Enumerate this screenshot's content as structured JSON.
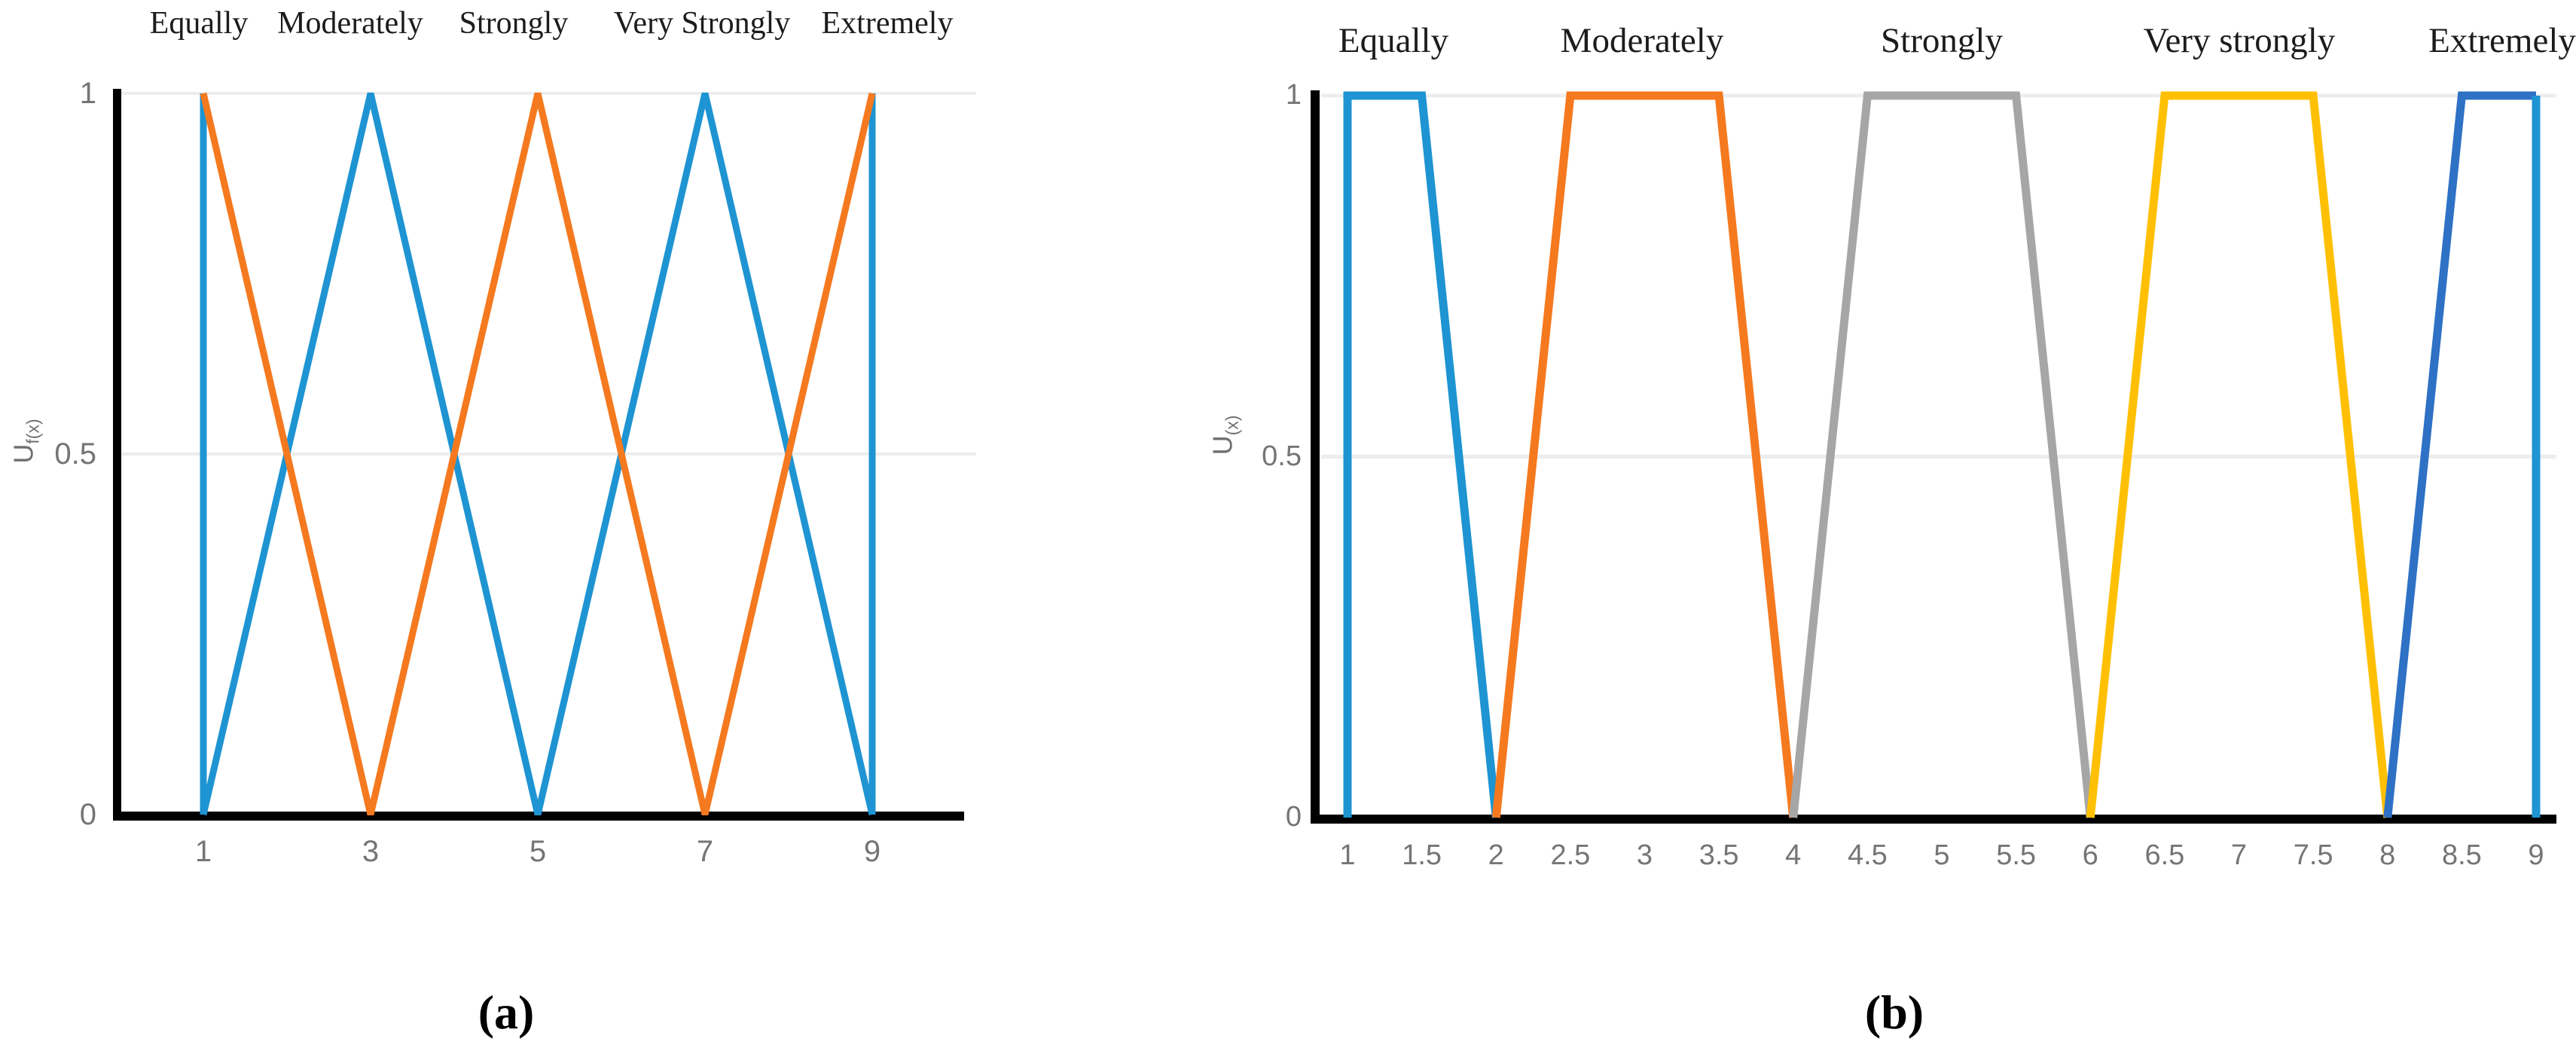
{
  "figure": {
    "captions": {
      "a": "(a)",
      "b": "(b)"
    }
  },
  "chart_data": [
    {
      "type": "line",
      "panel": "a",
      "description": "Triangular fuzzy membership functions over Saaty scale 1-9",
      "membership_labels": [
        "Equally",
        "Moderately",
        "Strongly",
        "Very Strongly",
        "Extremely"
      ],
      "xlabel": "",
      "ylabel_main": "U",
      "ylabel_sub": "f(x)",
      "xlim": [
        1,
        9
      ],
      "ylim": [
        0,
        1
      ],
      "x_ticks": [
        1,
        3,
        5,
        7,
        9
      ],
      "y_ticks": [
        1,
        0.5,
        0
      ],
      "y_gridlines": [
        1,
        0.5
      ],
      "grid": "horizontal-only",
      "legend": "none",
      "axis_color": "#000000",
      "grid_color": "#ededed",
      "series": [
        {
          "name": "blue-left-edge",
          "color": "#1e94d2",
          "points": [
            [
              1,
              0
            ],
            [
              1,
              1
            ]
          ]
        },
        {
          "name": "blue-triangles-zigzag",
          "color": "#1e94d2",
          "points": [
            [
              1,
              0
            ],
            [
              3,
              1
            ],
            [
              5,
              0
            ],
            [
              7,
              1
            ],
            [
              9,
              0
            ]
          ]
        },
        {
          "name": "blue-right-edge",
          "color": "#1e94d2",
          "points": [
            [
              9,
              0
            ],
            [
              9,
              1
            ]
          ]
        },
        {
          "name": "orange-triangles-zigzag",
          "color": "#f5791f",
          "points": [
            [
              1,
              1
            ],
            [
              3,
              0
            ],
            [
              5,
              1
            ],
            [
              7,
              0
            ],
            [
              9,
              1
            ]
          ]
        }
      ]
    },
    {
      "type": "line",
      "panel": "b",
      "description": "Trapezoidal fuzzy membership functions over Saaty scale 1-9",
      "membership_labels": [
        "Equally",
        "Moderately",
        "Strongly",
        "Very strongly",
        "Extremely"
      ],
      "xlabel": "",
      "ylabel_main": "U",
      "ylabel_sub": "(x)",
      "xlim": [
        1,
        9
      ],
      "ylim": [
        0,
        1
      ],
      "x_ticks": [
        1,
        1.5,
        2,
        2.5,
        3,
        3.5,
        4,
        4.5,
        5,
        5.5,
        6,
        6.5,
        7,
        7.5,
        8,
        8.5,
        9
      ],
      "y_ticks": [
        1,
        0.5,
        0
      ],
      "y_gridlines": [
        1,
        0.5
      ],
      "grid": "horizontal-only",
      "legend": "none",
      "axis_color": "#000000",
      "grid_color": "#ededed",
      "series": [
        {
          "name": "equally-trapezoid",
          "color": "#1e94d2",
          "points": [
            [
              1,
              0
            ],
            [
              1,
              1
            ],
            [
              1.5,
              1
            ],
            [
              2,
              0
            ]
          ]
        },
        {
          "name": "moderately-trapezoid",
          "color": "#f5791f",
          "points": [
            [
              2,
              0
            ],
            [
              2.5,
              1
            ],
            [
              3.5,
              1
            ],
            [
              4,
              0
            ]
          ]
        },
        {
          "name": "strongly-trapezoid",
          "color": "#a6a6a6",
          "points": [
            [
              4,
              0
            ],
            [
              4.5,
              1
            ],
            [
              5.5,
              1
            ],
            [
              6,
              0
            ]
          ]
        },
        {
          "name": "very-strongly-trapezoid",
          "color": "#ffc003",
          "points": [
            [
              6,
              0
            ],
            [
              6.5,
              1
            ],
            [
              7.5,
              1
            ],
            [
              8,
              0
            ]
          ]
        },
        {
          "name": "extremely-trapezoid",
          "color": "#2e71c5",
          "points": [
            [
              8,
              0
            ],
            [
              8.5,
              1
            ],
            [
              9,
              1
            ]
          ]
        },
        {
          "name": "extremely-right-edge",
          "color": "#1e94d2",
          "points": [
            [
              9,
              1
            ],
            [
              9,
              0
            ]
          ]
        }
      ]
    }
  ]
}
